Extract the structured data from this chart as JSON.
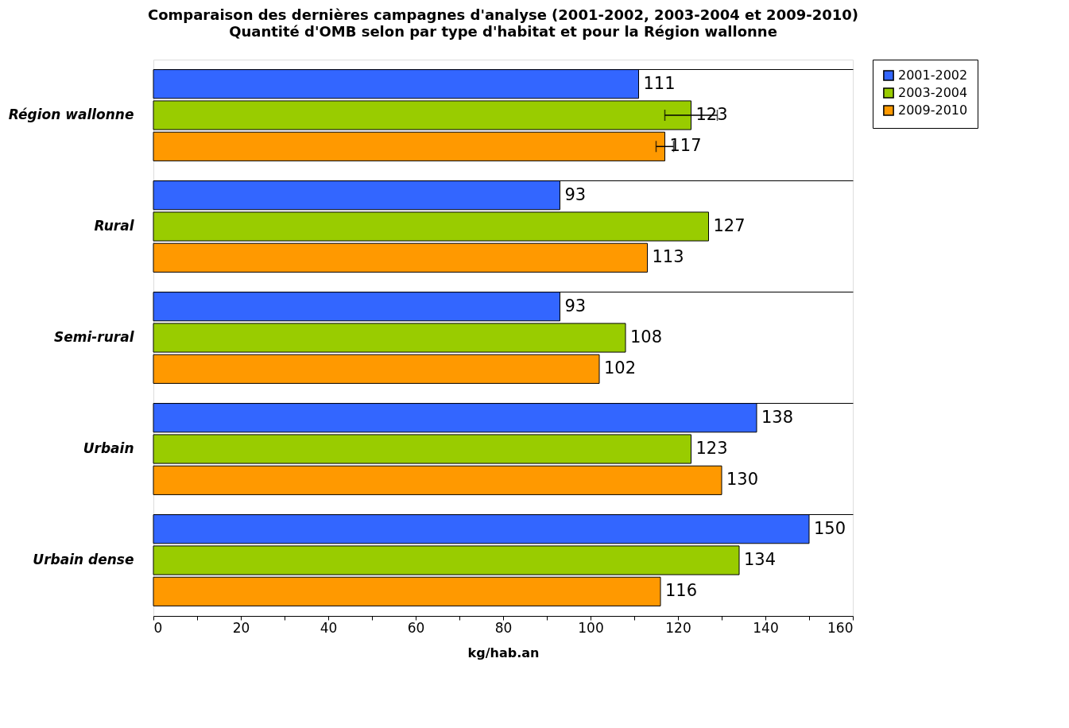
{
  "chart_data": {
    "type": "bar",
    "orientation": "horizontal",
    "title": "Comparaison des dernières campagnes d'analyse (2001-2002, 2003-2004 et 2009-2010)",
    "subtitle": "Quantité d'OMB selon par type d'habitat et pour la Région wallonne",
    "xlabel": "kg/hab.an",
    "categories": [
      "Région wallonne",
      "Rural",
      "Semi-rural",
      "Urbain",
      "Urbain dense"
    ],
    "series": [
      {
        "name": "2001-2002",
        "color": "#3366ff",
        "values": [
          111,
          93,
          93,
          138,
          150
        ]
      },
      {
        "name": "2003-2004",
        "color": "#99cc00",
        "values": [
          123,
          127,
          108,
          123,
          134
        ],
        "errors": [
          6,
          null,
          null,
          null,
          null
        ]
      },
      {
        "name": "2009-2010",
        "color": "#ff9900",
        "values": [
          117,
          113,
          102,
          130,
          116
        ],
        "errors": [
          2,
          null,
          null,
          null,
          null
        ]
      }
    ],
    "xlim": [
      0,
      160
    ],
    "xticks": [
      0,
      {
        "value": 10,
        "label": null
      },
      20,
      {
        "value": 30,
        "label": null
      },
      40,
      {
        "value": 50,
        "label": null
      },
      60,
      {
        "value": 70,
        "label": null
      },
      80,
      {
        "value": 90,
        "label": null
      },
      100,
      {
        "value": 110,
        "label": null
      },
      120,
      {
        "value": 130,
        "label": null
      },
      140,
      {
        "value": 150,
        "label": null
      },
      160
    ],
    "grid": "y",
    "legend": "top right",
    "data_labels": true
  }
}
